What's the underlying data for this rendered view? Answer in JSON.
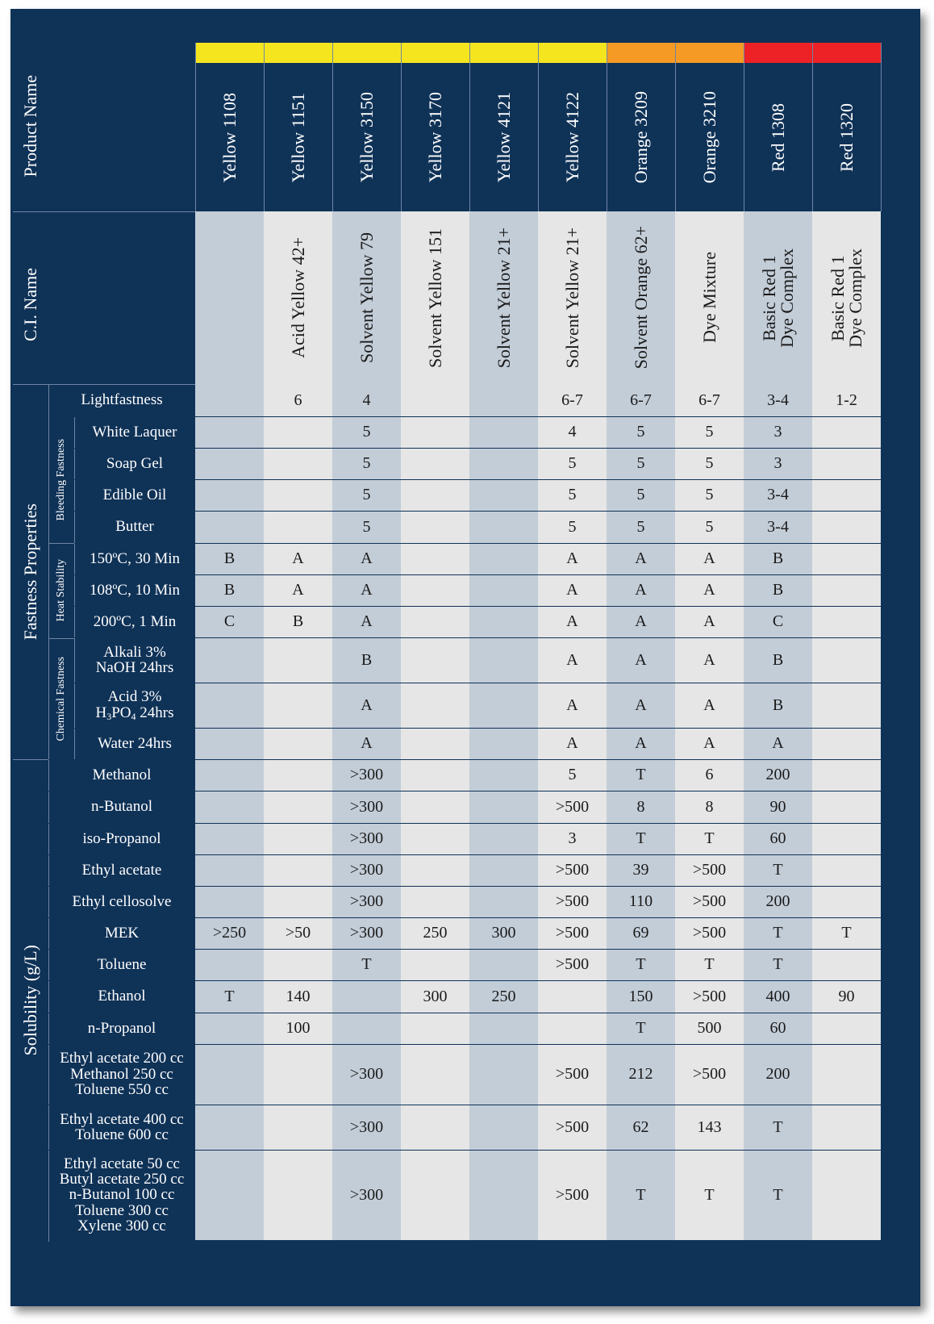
{
  "header": {
    "product_name_label": "Product Name",
    "ci_name_label": "C.I. Name"
  },
  "columns": [
    {
      "product": "Yellow 1108",
      "ci": "",
      "color": "#f5e51f"
    },
    {
      "product": "Yellow 1151",
      "ci": "Acid Yellow 42+",
      "color": "#f5e51f"
    },
    {
      "product": "Yellow 3150",
      "ci": "Solvent Yellow 79",
      "color": "#f5e51f"
    },
    {
      "product": "Yellow 3170",
      "ci": "Solvent Yellow 151",
      "color": "#f5e51f"
    },
    {
      "product": "Yellow 4121",
      "ci": "Solvent Yellow 21+",
      "color": "#f5e51f"
    },
    {
      "product": "Yellow 4122",
      "ci": "Solvent Yellow 21+",
      "color": "#f5e51f"
    },
    {
      "product": "Orange 3209",
      "ci": "Solvent Orange 62+",
      "color": "#f49a25"
    },
    {
      "product": "Orange 3210",
      "ci": "Dye Mixture",
      "color": "#f49a25"
    },
    {
      "product": "Red 1308",
      "ci": "Basic Red 1\nDye Complex",
      "color": "#ec2227"
    },
    {
      "product": "Red 1320",
      "ci": "Basic Red 1\nDye Complex",
      "color": "#ec2227"
    }
  ],
  "sections": {
    "fastness": "Fastness Properties",
    "solubility": "Solubility (g/L)",
    "bleeding": "Bleeding Fastness",
    "heat": "Heat Stability",
    "chemical": "Chemical Fastness"
  },
  "rows": [
    {
      "label": "Lightfastness",
      "values": [
        "",
        "6",
        "4",
        "",
        "",
        "6-7",
        "6-7",
        "6-7",
        "3-4",
        "1-2"
      ]
    },
    {
      "label": "White Laquer",
      "values": [
        "",
        "",
        "5",
        "",
        "",
        "4",
        "5",
        "5",
        "3",
        ""
      ]
    },
    {
      "label": "Soap Gel",
      "values": [
        "",
        "",
        "5",
        "",
        "",
        "5",
        "5",
        "5",
        "3",
        ""
      ]
    },
    {
      "label": "Edible Oil",
      "values": [
        "",
        "",
        "5",
        "",
        "",
        "5",
        "5",
        "5",
        "3-4",
        ""
      ]
    },
    {
      "label": "Butter",
      "values": [
        "",
        "",
        "5",
        "",
        "",
        "5",
        "5",
        "5",
        "3-4",
        ""
      ]
    },
    {
      "label": "150ºC, 30 Min",
      "values": [
        "B",
        "A",
        "A",
        "",
        "",
        "A",
        "A",
        "A",
        "B",
        ""
      ]
    },
    {
      "label": "108ºC, 10 Min",
      "values": [
        "B",
        "A",
        "A",
        "",
        "",
        "A",
        "A",
        "A",
        "B",
        ""
      ]
    },
    {
      "label": "200ºC, 1 Min",
      "values": [
        "C",
        "B",
        "A",
        "",
        "",
        "A",
        "A",
        "A",
        "C",
        ""
      ]
    },
    {
      "label": "Alkali 3%\nNaOH 24hrs",
      "values": [
        "",
        "",
        "B",
        "",
        "",
        "A",
        "A",
        "A",
        "B",
        ""
      ]
    },
    {
      "label": "Acid 3%",
      "label_formula": [
        "H",
        "3",
        "PO",
        "4",
        " 24hrs"
      ],
      "values": [
        "",
        "",
        "A",
        "",
        "",
        "A",
        "A",
        "A",
        "B",
        ""
      ]
    },
    {
      "label": "Water 24hrs",
      "values": [
        "",
        "",
        "A",
        "",
        "",
        "A",
        "A",
        "A",
        "A",
        ""
      ]
    },
    {
      "label": "Methanol",
      "values": [
        "",
        "",
        ">300",
        "",
        "",
        "5",
        "T",
        "6",
        "200",
        ""
      ]
    },
    {
      "label": "n-Butanol",
      "values": [
        "",
        "",
        ">300",
        "",
        "",
        ">500",
        "8",
        "8",
        "90",
        ""
      ]
    },
    {
      "label": "iso-Propanol",
      "values": [
        "",
        "",
        ">300",
        "",
        "",
        "3",
        "T",
        "T",
        "60",
        ""
      ]
    },
    {
      "label": "Ethyl acetate",
      "values": [
        "",
        "",
        ">300",
        "",
        "",
        ">500",
        "39",
        ">500",
        "T",
        ""
      ]
    },
    {
      "label": "Ethyl cellosolve",
      "values": [
        "",
        "",
        ">300",
        "",
        "",
        ">500",
        "110",
        ">500",
        "200",
        ""
      ]
    },
    {
      "label": "MEK",
      "values": [
        ">250",
        ">50",
        ">300",
        "250",
        "300",
        ">500",
        "69",
        ">500",
        "T",
        "T"
      ]
    },
    {
      "label": "Toluene",
      "values": [
        "",
        "",
        "T",
        "",
        "",
        ">500",
        "T",
        "T",
        "T",
        ""
      ]
    },
    {
      "label": "Ethanol",
      "values": [
        "T",
        "140",
        "",
        "300",
        "250",
        "",
        "150",
        ">500",
        "400",
        "90"
      ]
    },
    {
      "label": "n-Propanol",
      "values": [
        "",
        "100",
        "",
        "",
        "",
        "",
        "T",
        "500",
        "60",
        ""
      ]
    },
    {
      "label": "Ethyl acetate 200 cc\nMethanol 250 cc\nToluene 550 cc",
      "values": [
        "",
        "",
        ">300",
        "",
        "",
        ">500",
        "212",
        ">500",
        "200",
        ""
      ]
    },
    {
      "label": "Ethyl acetate 400 cc\nToluene 600 cc",
      "values": [
        "",
        "",
        ">300",
        "",
        "",
        ">500",
        "62",
        "143",
        "T",
        ""
      ]
    },
    {
      "label": "Ethyl acetate 50 cc\nButyl acetate 250 cc\nn-Butanol 100 cc\nToluene 300 cc\nXylene 300 cc",
      "values": [
        "",
        "",
        ">300",
        "",
        "",
        ">500",
        "T",
        "T",
        "T",
        ""
      ]
    }
  ],
  "colors": {
    "navy": "#0f3257",
    "band_light": "#e6e6e6",
    "band_dark": "#c3cdd8"
  }
}
